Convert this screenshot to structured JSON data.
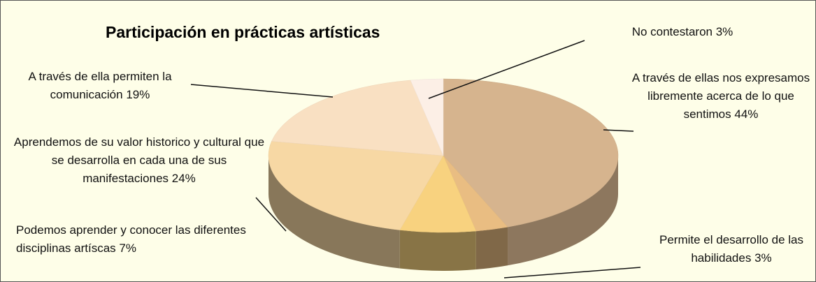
{
  "chart_data": {
    "type": "pie",
    "title": "Participación en prácticas artísticas",
    "categories": [
      "A través de ellas nos expresamos libremente acerca de lo que sentimos",
      "Permite el desarrollo de las habilidades",
      "Podemos aprender y conocer las diferentes disciplinas artíscas",
      "Aprendemos de su valor historico y cultural que se desarrolla en cada una de sus manifestaciones",
      "A través de ella permiten la comunicación",
      "No contestaron"
    ],
    "values": [
      44,
      3,
      7,
      24,
      19,
      3
    ],
    "value_labels": [
      "44%",
      "3%",
      "7%",
      "24%",
      "19%",
      "3%"
    ],
    "colors": [
      "#d6b48e",
      "#e9bd82",
      "#f8d27f",
      "#f7d8a4",
      "#f9e0c2",
      "#fcefe6"
    ]
  }
}
